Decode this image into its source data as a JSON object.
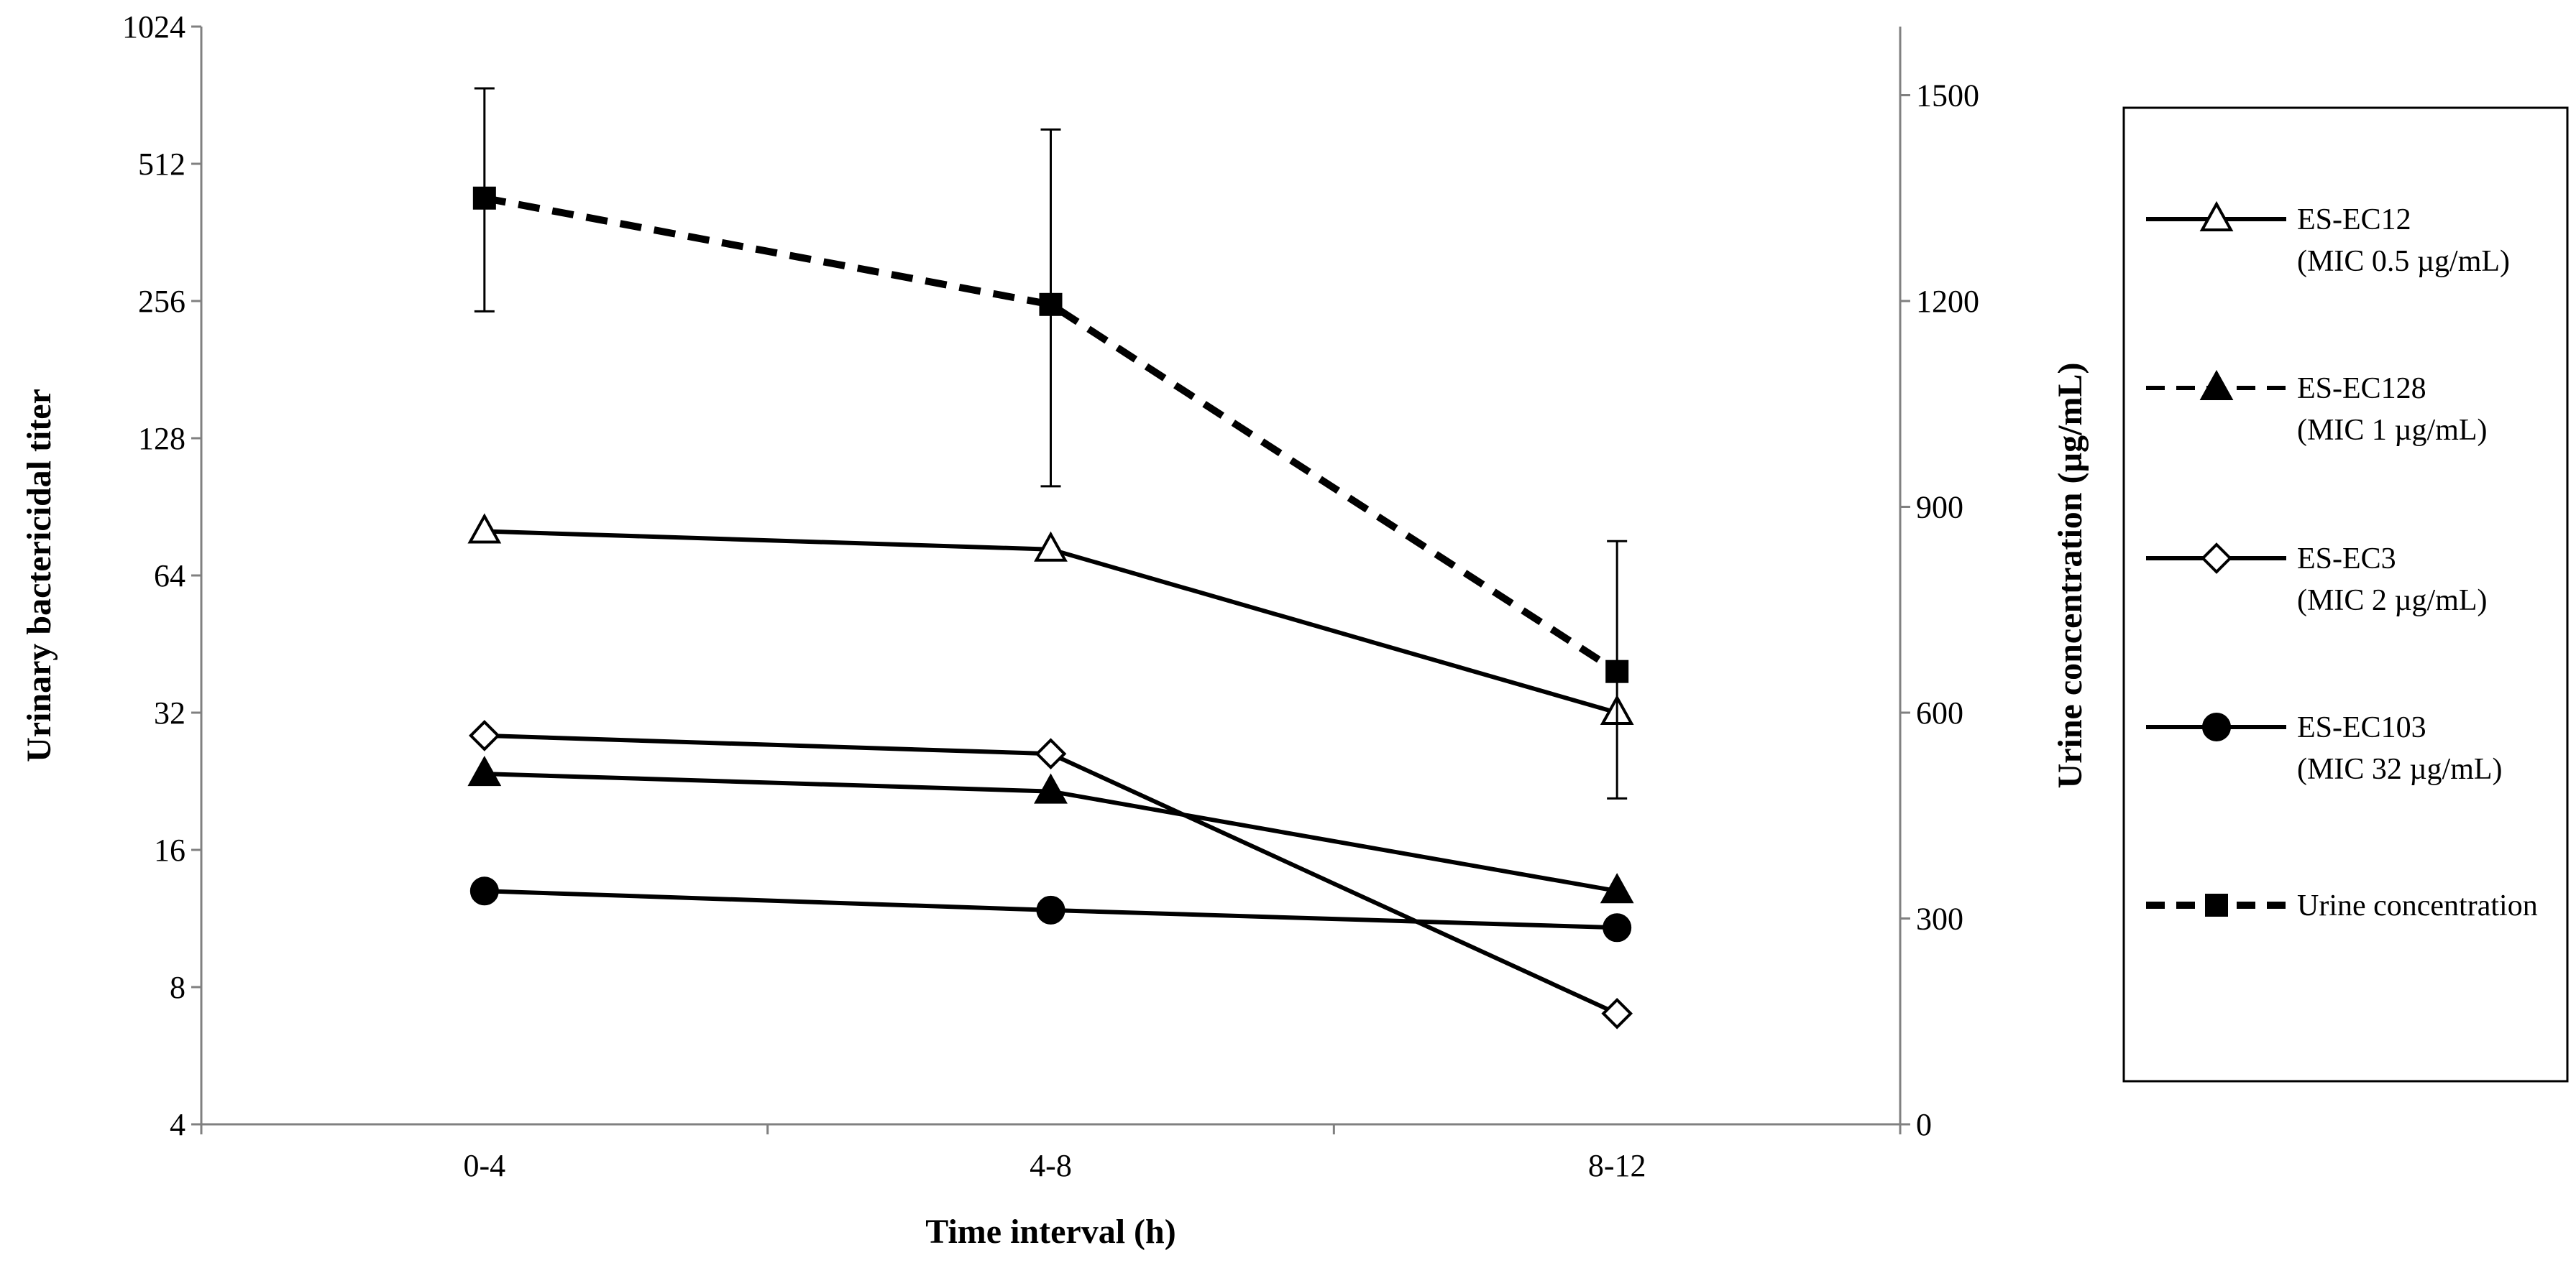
{
  "chart_data": {
    "type": "line",
    "categories": [
      "0-4",
      "4-8",
      "8-12"
    ],
    "xlabel": "Time interval (h)",
    "ylabel_left": "Urinary bactericidal titer",
    "ylabel_right": "Urine concentration (µg/mL)",
    "left_axis": {
      "scale": "log2",
      "ylim": [
        4,
        1024
      ],
      "ticks": [
        4,
        8,
        16,
        32,
        64,
        128,
        256,
        512,
        1024
      ],
      "tick_labels": [
        "4",
        "8",
        "16",
        "32",
        "64",
        "128",
        "256",
        "512",
        "1024"
      ]
    },
    "right_axis": {
      "scale": "linear",
      "ylim": [
        0,
        1600
      ],
      "ticks": [
        0,
        300,
        600,
        900,
        1200,
        1500
      ],
      "tick_labels": [
        "0",
        "300",
        "600",
        "900",
        "1200",
        "1500"
      ]
    },
    "series": [
      {
        "name": "ES-EC12",
        "mic": "(MIC 0.5 µg/mL)",
        "axis": "left",
        "marker": "triangle-open",
        "dash": "solid",
        "values": [
          80,
          73,
          32
        ]
      },
      {
        "name": "ES-EC128",
        "mic": "(MIC 1 µg/mL)",
        "axis": "left",
        "marker": "triangle-filled",
        "dash": "dashed",
        "values": [
          23.5,
          21.5,
          13
        ]
      },
      {
        "name": "ES-EC3",
        "mic": "(MIC 2 µg/mL)",
        "axis": "left",
        "marker": "diamond-open",
        "dash": "solid",
        "values": [
          28.5,
          26,
          7
        ]
      },
      {
        "name": "ES-EC103",
        "mic": "(MIC 32 µg/mL)",
        "axis": "left",
        "marker": "circle-filled",
        "dash": "solid",
        "values": [
          13,
          11.8,
          10.8
        ]
      },
      {
        "name": "Urine concentration",
        "mic": "",
        "axis": "right",
        "marker": "square-filled",
        "dash": "dashed",
        "values": [
          1350,
          1195,
          660
        ],
        "error_low": [
          1185,
          930,
          475
        ],
        "error_high": [
          1510,
          1450,
          850
        ]
      }
    ],
    "legend_position": "right",
    "grid": false
  }
}
